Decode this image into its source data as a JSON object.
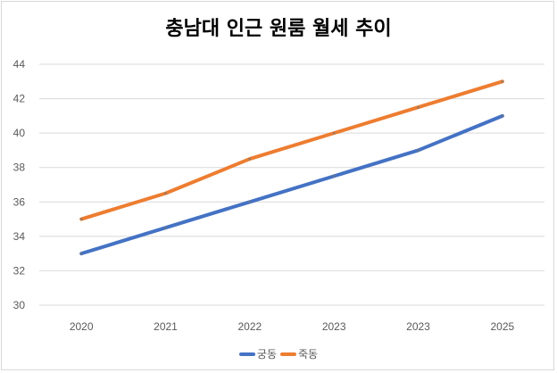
{
  "chart_data": {
    "type": "line",
    "title": "충남대 인근 원룸 월세 추이",
    "categories": [
      "2020",
      "2021",
      "2022",
      "2023",
      "2023",
      "2025"
    ],
    "series": [
      {
        "name": "궁동",
        "values": [
          33,
          34.5,
          36,
          37.5,
          39,
          41
        ],
        "color": "#4472C4"
      },
      {
        "name": "죽동",
        "values": [
          35,
          36.5,
          38.5,
          40,
          41.5,
          43
        ],
        "color": "#ED7D31"
      }
    ],
    "ylim": [
      30,
      44
    ],
    "yticks": [
      30,
      32,
      34,
      36,
      38,
      40,
      42,
      44
    ],
    "grid": true,
    "legend_position": "bottom"
  }
}
